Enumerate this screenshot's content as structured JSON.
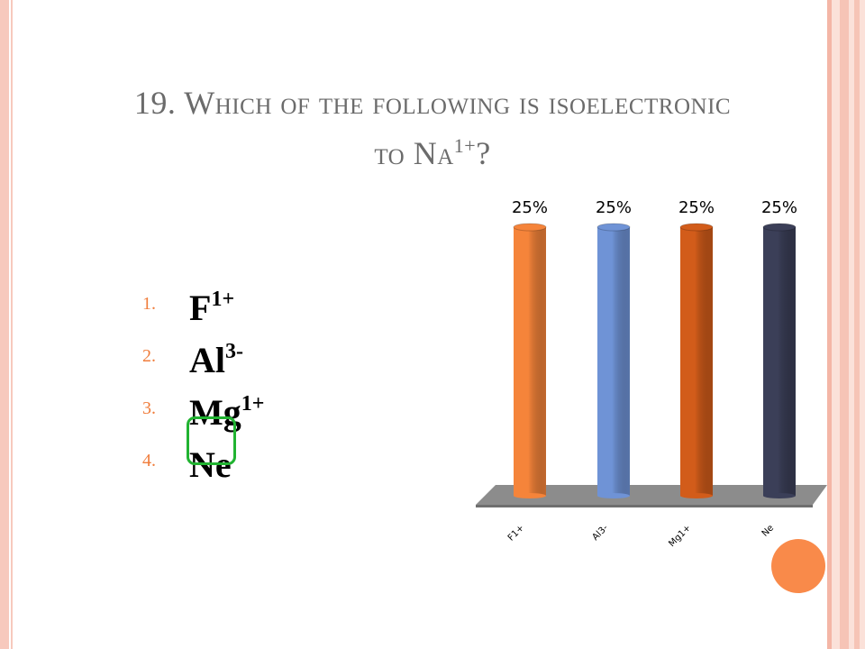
{
  "slide": {
    "title_number": "19.",
    "title_first": "W",
    "title_rest": "hich of the following is isoelectronic",
    "title_line2_pre": "to N",
    "title_line2_small": "a",
    "title_sup": "1+",
    "title_end": "?"
  },
  "answers": [
    {
      "num": "1.",
      "base": "F",
      "sup": "1+"
    },
    {
      "num": "2.",
      "base": "Al",
      "sup": "3-"
    },
    {
      "num": "3.",
      "base": "Mg",
      "sup": "1+"
    },
    {
      "num": "4.",
      "base": "Ne",
      "sup": ""
    }
  ],
  "correct_answer_index": 3,
  "colors": {
    "accent": "#f07d3c",
    "correct_outline": "#21b331",
    "title": "#6b6b6b"
  },
  "chart_data": {
    "type": "bar",
    "categories": [
      "F1+",
      "Al3-",
      "Mg1+",
      "Ne"
    ],
    "values": [
      25,
      25,
      25,
      25
    ],
    "value_labels": [
      "25%",
      "25%",
      "25%",
      "25%"
    ],
    "colors": [
      "#f5843a",
      "#6f93d6",
      "#d25c1a",
      "#3b3f58"
    ],
    "ylim": [
      0,
      25
    ],
    "title": "",
    "xlabel": "",
    "ylabel": "",
    "grid": false,
    "legend": "none"
  }
}
